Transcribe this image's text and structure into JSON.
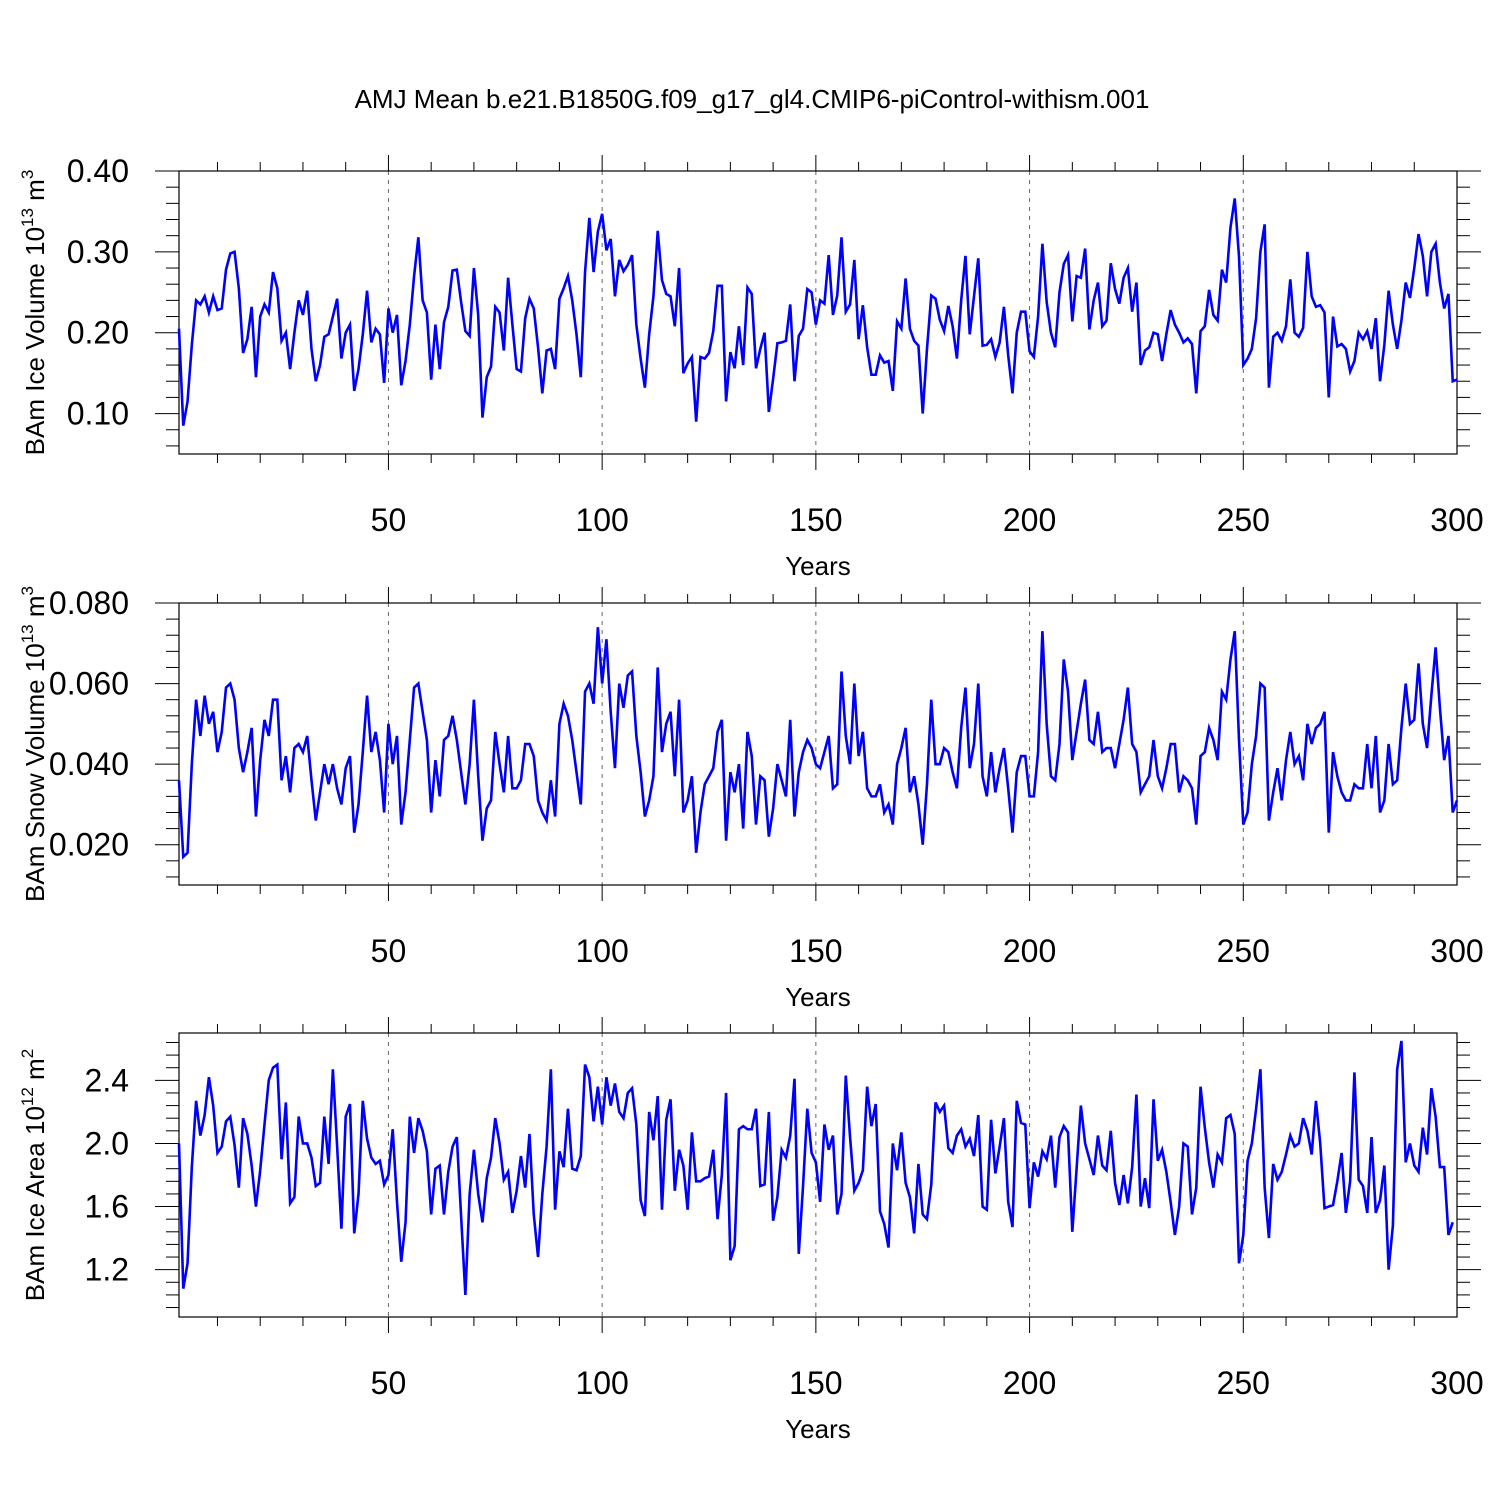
{
  "title": "AMJ Mean b.e21.B1850G.f09_g17_gl4.CMIP6-piControl-withism.001",
  "chart_data": [
    {
      "type": "line",
      "title": "",
      "xlabel": "Years",
      "ylabel": "BAm Ice Volume 10",
      "ylabel_exp": "13",
      "ylabel_unit": " m",
      "ylabel_unit_exp": "3",
      "xlim": [
        1,
        300
      ],
      "ylim": [
        0.05,
        0.4
      ],
      "xticks": [
        "50",
        "100",
        "150",
        "200",
        "250",
        "300"
      ],
      "xtick_values": [
        50,
        100,
        150,
        200,
        250,
        300
      ],
      "yticks": [
        "0.10",
        "0.20",
        "0.30",
        "0.40"
      ],
      "ytick_values": [
        0.1,
        0.2,
        0.3,
        0.4
      ],
      "grid": "vertical dashed at major x ticks",
      "series": [
        {
          "color": "#0000ff",
          "x_start": 1,
          "x_step": 1,
          "values": [
            0.205,
            0.085,
            0.115,
            0.185,
            0.24,
            0.235,
            0.245,
            0.225,
            0.245,
            0.228,
            0.23,
            0.278,
            0.298,
            0.3,
            0.255,
            0.175,
            0.192,
            0.232,
            0.145,
            0.22,
            0.235,
            0.225,
            0.275,
            0.255,
            0.19,
            0.2,
            0.155,
            0.2,
            0.24,
            0.222,
            0.252,
            0.18,
            0.14,
            0.16,
            0.195,
            0.198,
            0.22,
            0.242,
            0.168,
            0.2,
            0.21,
            0.128,
            0.155,
            0.198,
            0.252,
            0.188,
            0.205,
            0.198,
            0.138,
            0.23,
            0.2,
            0.222,
            0.135,
            0.165,
            0.21,
            0.27,
            0.318,
            0.24,
            0.225,
            0.142,
            0.21,
            0.155,
            0.213,
            0.232,
            0.277,
            0.278,
            0.238,
            0.202,
            0.196,
            0.28,
            0.222,
            0.095,
            0.145,
            0.158,
            0.232,
            0.225,
            0.178,
            0.268,
            0.21,
            0.155,
            0.152,
            0.218,
            0.242,
            0.23,
            0.182,
            0.125,
            0.178,
            0.18,
            0.155,
            0.242,
            0.255,
            0.27,
            0.24,
            0.198,
            0.145,
            0.275,
            0.342,
            0.275,
            0.325,
            0.347,
            0.302,
            0.316,
            0.245,
            0.29,
            0.276,
            0.284,
            0.296,
            0.21,
            0.168,
            0.132,
            0.198,
            0.245,
            0.326,
            0.265,
            0.248,
            0.245,
            0.208,
            0.28,
            0.15,
            0.162,
            0.17,
            0.09,
            0.17,
            0.168,
            0.175,
            0.202,
            0.258,
            0.258,
            0.115,
            0.176,
            0.156,
            0.208,
            0.16,
            0.256,
            0.248,
            0.156,
            0.18,
            0.2,
            0.102,
            0.143,
            0.187,
            0.188,
            0.19,
            0.235,
            0.14,
            0.196,
            0.205,
            0.254,
            0.25,
            0.21,
            0.24,
            0.236,
            0.296,
            0.222,
            0.246,
            0.318,
            0.226,
            0.235,
            0.29,
            0.192,
            0.234,
            0.182,
            0.148,
            0.148,
            0.172,
            0.163,
            0.165,
            0.128,
            0.214,
            0.205,
            0.267,
            0.205,
            0.19,
            0.184,
            0.1,
            0.18,
            0.246,
            0.242,
            0.216,
            0.202,
            0.233,
            0.208,
            0.168,
            0.24,
            0.295,
            0.198,
            0.245,
            0.292,
            0.184,
            0.185,
            0.192,
            0.17,
            0.188,
            0.232,
            0.172,
            0.125,
            0.2,
            0.226,
            0.226,
            0.177,
            0.17,
            0.22,
            0.31,
            0.238,
            0.2,
            0.182,
            0.25,
            0.285,
            0.296,
            0.214,
            0.27,
            0.268,
            0.304,
            0.204,
            0.24,
            0.262,
            0.208,
            0.215,
            0.286,
            0.254,
            0.236,
            0.268,
            0.28,
            0.226,
            0.262,
            0.16,
            0.178,
            0.182,
            0.2,
            0.198,
            0.165,
            0.198,
            0.228,
            0.21,
            0.2,
            0.188,
            0.193,
            0.186,
            0.125,
            0.202,
            0.208,
            0.253,
            0.222,
            0.215,
            0.278,
            0.262,
            0.33,
            0.366,
            0.294,
            0.16,
            0.168,
            0.18,
            0.218,
            0.3,
            0.334,
            0.132,
            0.195,
            0.2,
            0.19,
            0.208,
            0.266,
            0.2,
            0.195,
            0.206,
            0.3,
            0.245,
            0.232,
            0.234,
            0.225,
            0.12,
            0.22,
            0.183,
            0.186,
            0.18,
            0.152,
            0.165,
            0.2,
            0.192,
            0.202,
            0.18,
            0.218,
            0.14,
            0.185,
            0.252,
            0.21,
            0.18,
            0.215,
            0.262,
            0.243,
            0.28,
            0.322,
            0.295,
            0.245,
            0.3,
            0.31,
            0.262,
            0.23,
            0.248,
            0.14,
            0.142
          ]
        }
      ]
    },
    {
      "type": "line",
      "title": "",
      "xlabel": "Years",
      "ylabel": "BAm Snow Volume 10",
      "ylabel_exp": "13",
      "ylabel_unit": " m",
      "ylabel_unit_exp": "3",
      "xlim": [
        1,
        300
      ],
      "ylim": [
        0.01,
        0.08
      ],
      "xticks": [
        "50",
        "100",
        "150",
        "200",
        "250",
        "300"
      ],
      "xtick_values": [
        50,
        100,
        150,
        200,
        250,
        300
      ],
      "yticks": [
        "0.020",
        "0.040",
        "0.060",
        "0.080"
      ],
      "ytick_values": [
        0.02,
        0.04,
        0.06,
        0.08
      ],
      "grid": "vertical dashed at major x ticks",
      "series": [
        {
          "color": "#0000ff",
          "x_start": 1,
          "x_step": 1,
          "values": [
            0.036,
            0.017,
            0.018,
            0.04,
            0.056,
            0.047,
            0.057,
            0.05,
            0.053,
            0.043,
            0.048,
            0.059,
            0.06,
            0.056,
            0.044,
            0.038,
            0.043,
            0.049,
            0.027,
            0.041,
            0.051,
            0.047,
            0.056,
            0.056,
            0.036,
            0.042,
            0.033,
            0.044,
            0.045,
            0.043,
            0.047,
            0.036,
            0.026,
            0.033,
            0.04,
            0.035,
            0.04,
            0.034,
            0.03,
            0.039,
            0.042,
            0.023,
            0.03,
            0.043,
            0.057,
            0.043,
            0.048,
            0.041,
            0.028,
            0.05,
            0.04,
            0.047,
            0.025,
            0.033,
            0.046,
            0.059,
            0.06,
            0.053,
            0.046,
            0.028,
            0.041,
            0.032,
            0.046,
            0.047,
            0.052,
            0.046,
            0.038,
            0.03,
            0.04,
            0.056,
            0.037,
            0.021,
            0.029,
            0.031,
            0.048,
            0.04,
            0.033,
            0.047,
            0.034,
            0.034,
            0.036,
            0.045,
            0.045,
            0.042,
            0.031,
            0.028,
            0.026,
            0.036,
            0.027,
            0.05,
            0.055,
            0.052,
            0.046,
            0.038,
            0.03,
            0.058,
            0.06,
            0.055,
            0.074,
            0.06,
            0.071,
            0.053,
            0.039,
            0.06,
            0.054,
            0.062,
            0.063,
            0.047,
            0.038,
            0.027,
            0.031,
            0.037,
            0.064,
            0.043,
            0.05,
            0.053,
            0.037,
            0.056,
            0.028,
            0.031,
            0.037,
            0.018,
            0.028,
            0.035,
            0.037,
            0.039,
            0.048,
            0.051,
            0.021,
            0.038,
            0.033,
            0.04,
            0.024,
            0.048,
            0.042,
            0.025,
            0.037,
            0.036,
            0.022,
            0.029,
            0.04,
            0.036,
            0.032,
            0.051,
            0.027,
            0.038,
            0.043,
            0.046,
            0.044,
            0.04,
            0.039,
            0.043,
            0.047,
            0.034,
            0.035,
            0.063,
            0.047,
            0.04,
            0.06,
            0.042,
            0.048,
            0.034,
            0.032,
            0.032,
            0.035,
            0.028,
            0.03,
            0.025,
            0.04,
            0.044,
            0.049,
            0.033,
            0.037,
            0.03,
            0.02,
            0.035,
            0.056,
            0.04,
            0.04,
            0.044,
            0.043,
            0.038,
            0.034,
            0.049,
            0.059,
            0.039,
            0.045,
            0.06,
            0.037,
            0.032,
            0.043,
            0.033,
            0.039,
            0.044,
            0.034,
            0.023,
            0.038,
            0.042,
            0.042,
            0.032,
            0.032,
            0.043,
            0.073,
            0.05,
            0.037,
            0.036,
            0.045,
            0.066,
            0.058,
            0.041,
            0.048,
            0.055,
            0.061,
            0.046,
            0.045,
            0.053,
            0.043,
            0.044,
            0.044,
            0.039,
            0.045,
            0.051,
            0.059,
            0.045,
            0.043,
            0.033,
            0.035,
            0.037,
            0.046,
            0.037,
            0.034,
            0.039,
            0.045,
            0.045,
            0.033,
            0.037,
            0.036,
            0.034,
            0.025,
            0.042,
            0.043,
            0.049,
            0.046,
            0.041,
            0.058,
            0.056,
            0.066,
            0.073,
            0.046,
            0.025,
            0.028,
            0.04,
            0.047,
            0.06,
            0.059,
            0.026,
            0.033,
            0.039,
            0.031,
            0.041,
            0.048,
            0.04,
            0.042,
            0.036,
            0.05,
            0.045,
            0.049,
            0.05,
            0.053,
            0.023,
            0.043,
            0.037,
            0.033,
            0.031,
            0.031,
            0.035,
            0.034,
            0.034,
            0.045,
            0.034,
            0.047,
            0.028,
            0.031,
            0.045,
            0.035,
            0.036,
            0.049,
            0.06,
            0.05,
            0.051,
            0.065,
            0.05,
            0.044,
            0.057,
            0.069,
            0.054,
            0.041,
            0.047,
            0.028,
            0.031
          ]
        }
      ]
    },
    {
      "type": "line",
      "title": "",
      "xlabel": "Years",
      "ylabel": "BAm Ice Area 10",
      "ylabel_exp": "12",
      "ylabel_unit": " m",
      "ylabel_unit_exp": "2",
      "xlim": [
        1,
        300
      ],
      "ylim": [
        0.9,
        2.7
      ],
      "xticks": [
        "50",
        "100",
        "150",
        "200",
        "250",
        "300"
      ],
      "xtick_values": [
        50,
        100,
        150,
        200,
        250,
        300
      ],
      "yticks": [
        "1.2",
        "1.6",
        "2.0",
        "2.4"
      ],
      "ytick_values": [
        1.2,
        1.6,
        2.0,
        2.4
      ],
      "grid": "vertical dashed at major x ticks",
      "series": [
        {
          "color": "#0000ff",
          "x_start": 1,
          "x_step": 1,
          "values": [
            2.0,
            1.08,
            1.24,
            1.85,
            2.27,
            2.05,
            2.18,
            2.42,
            2.24,
            1.94,
            1.98,
            2.14,
            2.17,
            1.99,
            1.72,
            2.16,
            2.06,
            1.86,
            1.6,
            1.83,
            2.12,
            2.4,
            2.48,
            2.5,
            1.9,
            2.26,
            1.62,
            1.66,
            2.17,
            2.0,
            2.0,
            1.91,
            1.73,
            1.75,
            2.17,
            1.87,
            2.47,
            1.98,
            1.46,
            2.17,
            2.25,
            1.43,
            1.68,
            2.27,
            2.03,
            1.91,
            1.87,
            1.89,
            1.74,
            1.8,
            2.09,
            1.63,
            1.25,
            1.5,
            2.17,
            1.94,
            2.16,
            2.08,
            1.95,
            1.55,
            1.84,
            1.86,
            1.55,
            1.82,
            1.98,
            2.04,
            1.54,
            1.04,
            1.68,
            1.96,
            1.68,
            1.5,
            1.78,
            1.91,
            2.16,
            2.0,
            1.77,
            1.82,
            1.56,
            1.7,
            1.92,
            1.72,
            2.06,
            1.55,
            1.28,
            1.68,
            1.98,
            2.47,
            1.58,
            1.95,
            1.85,
            2.22,
            1.84,
            1.83,
            1.92,
            2.5,
            2.42,
            2.14,
            2.36,
            2.12,
            2.42,
            2.24,
            2.38,
            2.2,
            2.16,
            2.32,
            2.35,
            2.12,
            1.64,
            1.54,
            2.2,
            2.02,
            2.3,
            1.58,
            2.15,
            2.28,
            1.7,
            1.96,
            1.86,
            1.58,
            2.07,
            1.76,
            1.76,
            1.78,
            1.79,
            1.96,
            1.52,
            1.8,
            2.32,
            1.26,
            1.35,
            2.09,
            2.11,
            2.09,
            2.09,
            2.22,
            1.73,
            1.74,
            2.2,
            1.51,
            1.66,
            1.96,
            1.91,
            2.05,
            2.41,
            1.3,
            1.73,
            2.22,
            1.94,
            1.88,
            1.63,
            2.12,
            1.96,
            2.05,
            1.55,
            1.68,
            2.43,
            2.04,
            1.7,
            1.75,
            1.83,
            2.36,
            2.11,
            2.25,
            1.57,
            1.49,
            1.34,
            2.0,
            1.83,
            2.07,
            1.75,
            1.66,
            1.43,
            1.87,
            1.55,
            1.52,
            1.74,
            2.26,
            2.2,
            2.24,
            1.97,
            1.94,
            2.05,
            2.09,
            1.98,
            2.03,
            1.92,
            2.18,
            1.6,
            1.58,
            2.15,
            1.81,
            1.98,
            2.16,
            1.63,
            1.47,
            2.27,
            2.13,
            2.12,
            1.59,
            1.88,
            1.79,
            1.95,
            1.9,
            2.05,
            1.72,
            2.04,
            2.11,
            2.07,
            1.44,
            1.84,
            2.24,
            2.0,
            1.9,
            1.8,
            2.05,
            1.86,
            1.83,
            2.08,
            1.75,
            1.61,
            1.8,
            1.62,
            1.85,
            2.31,
            1.6,
            1.78,
            1.59,
            2.28,
            1.89,
            1.96,
            1.82,
            1.63,
            1.42,
            1.6,
            2.0,
            1.98,
            1.55,
            1.72,
            2.36,
            2.1,
            1.88,
            1.72,
            1.93,
            1.88,
            2.16,
            2.18,
            2.06,
            1.24,
            1.42,
            1.89,
            2.0,
            2.22,
            2.47,
            1.72,
            1.4,
            1.87,
            1.77,
            1.82,
            1.93,
            2.05,
            1.98,
            2.0,
            2.16,
            2.08,
            1.93,
            2.27,
            2.0,
            1.59,
            1.6,
            1.61,
            1.76,
            1.94,
            1.56,
            1.76,
            2.45,
            1.77,
            1.73,
            1.56,
            2.04,
            1.56,
            1.64,
            1.86,
            1.2,
            1.48,
            2.47,
            2.65,
            1.88,
            2.0,
            1.86,
            1.82,
            2.1,
            1.93,
            2.35,
            2.17,
            1.85,
            1.85,
            1.42,
            1.5
          ]
        }
      ]
    }
  ]
}
